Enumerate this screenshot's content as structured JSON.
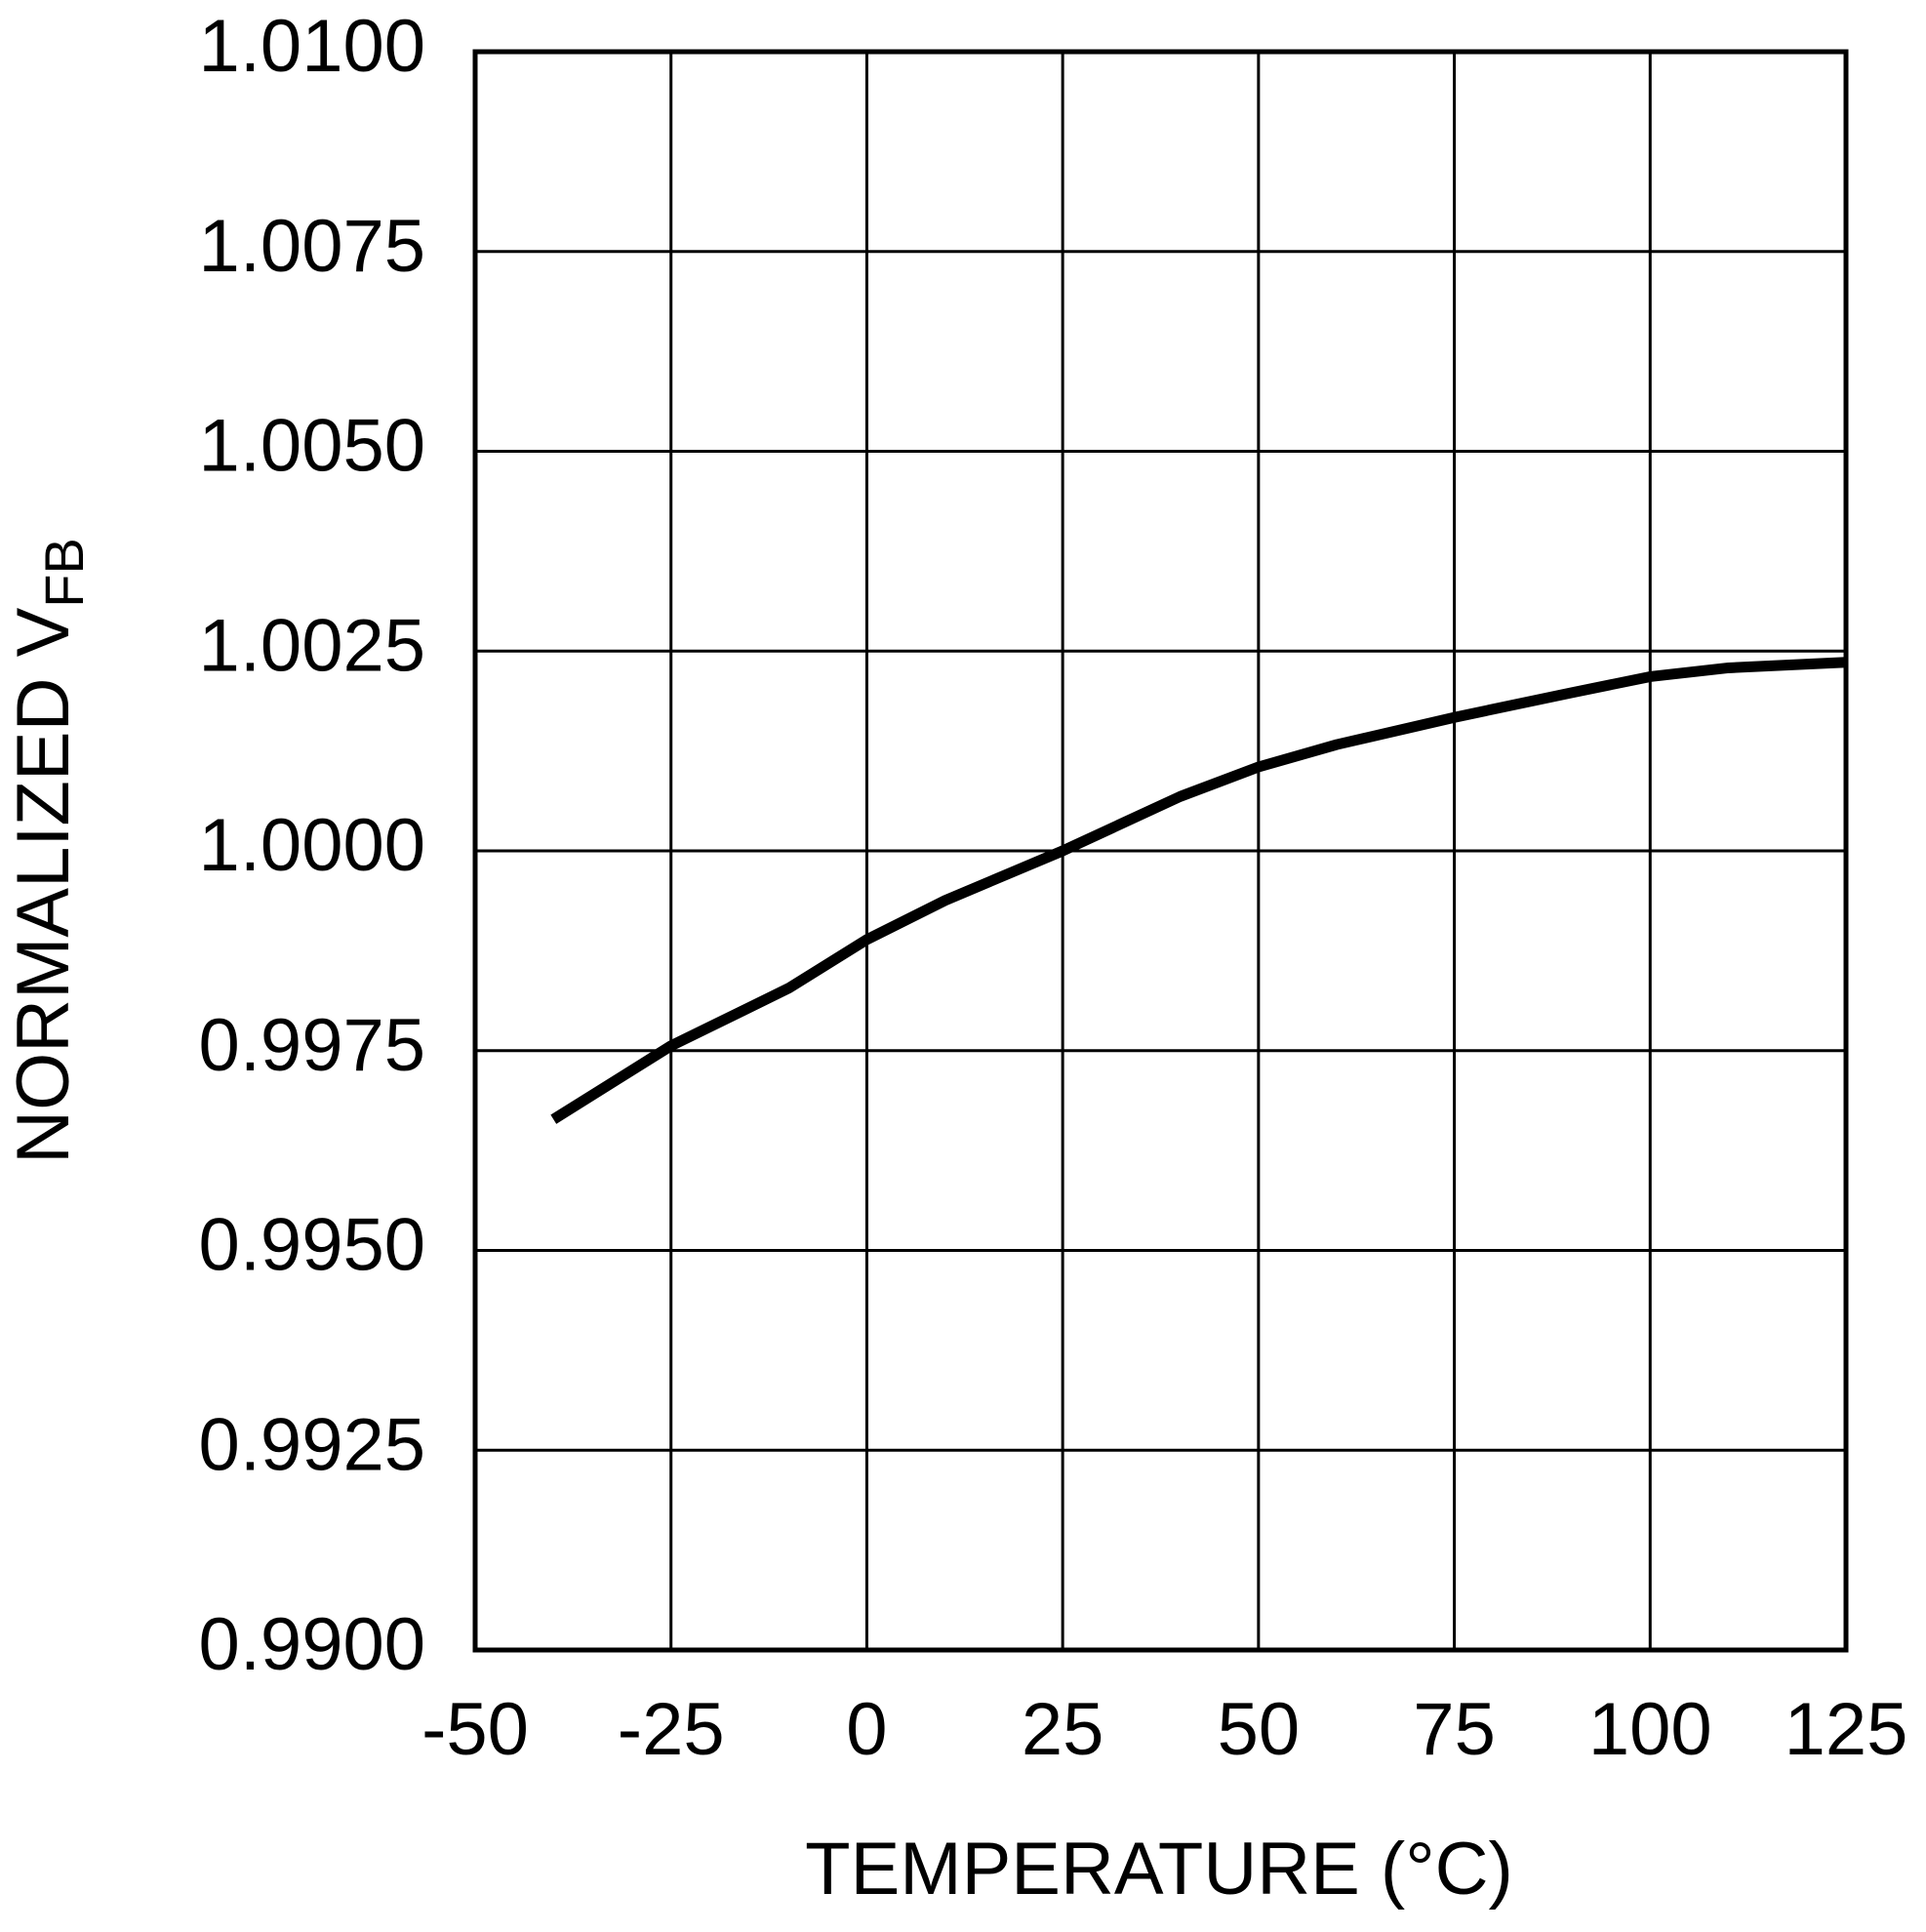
{
  "chart_data": {
    "type": "line",
    "xlabel": "TEMPERATURE (°C)",
    "ylabel": "NORMALIZED V",
    "ylabel_sub": "FB",
    "x": [
      -40,
      -25,
      -10,
      0,
      10,
      25,
      40,
      50,
      60,
      75,
      90,
      100,
      110,
      125
    ],
    "series": [
      {
        "color": "#000000",
        "values": [
          0.99664,
          0.99756,
          0.99828,
          0.99889,
          0.99938,
          1.0,
          1.00068,
          1.00105,
          1.00133,
          1.00167,
          1.00198,
          1.00218,
          1.00229,
          1.00236
        ]
      }
    ],
    "xlim": [
      -50,
      125
    ],
    "xticks": [
      -50,
      -25,
      0,
      25,
      50,
      75,
      100,
      125
    ],
    "ylim": [
      0.99,
      1.01
    ],
    "yticks": [
      {
        "value": 0.99,
        "label": "0.9900"
      },
      {
        "value": 0.9925,
        "label": "0.9925"
      },
      {
        "value": 0.995,
        "label": "0.9950"
      },
      {
        "value": 0.9975,
        "label": "0.9975"
      },
      {
        "value": 1.0,
        "label": "1.0000"
      },
      {
        "value": 1.0025,
        "label": "1.0025"
      },
      {
        "value": 1.005,
        "label": "1.0050"
      },
      {
        "value": 1.0075,
        "label": "1.0075"
      },
      {
        "value": 1.01,
        "label": "1.0100"
      }
    ],
    "grid": true
  }
}
